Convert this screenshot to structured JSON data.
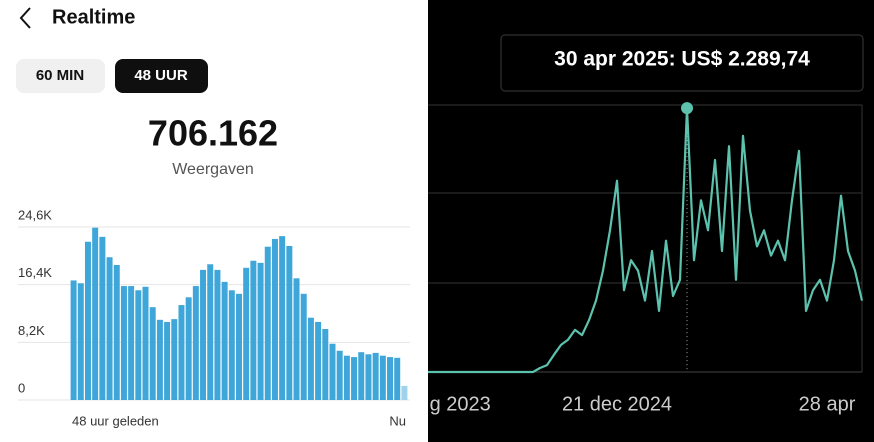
{
  "header": {
    "title": "Realtime"
  },
  "tabs": [
    "60 MIN",
    "48 UUR"
  ],
  "total": {
    "value": "706.162",
    "label": "Weergaven"
  },
  "chart_data": [
    {
      "type": "bar",
      "categories": [
        "48 uur geleden",
        null,
        null,
        null,
        null,
        null,
        null,
        null,
        null,
        null,
        null,
        null,
        null,
        null,
        null,
        null,
        null,
        null,
        null,
        null,
        null,
        null,
        null,
        null,
        null,
        null,
        null,
        null,
        null,
        null,
        null,
        null,
        null,
        null,
        null,
        null,
        null,
        null,
        null,
        null,
        null,
        null,
        null,
        null,
        null,
        null,
        "Nu"
      ],
      "values": [
        17000,
        16600,
        22500,
        24500,
        23200,
        20300,
        19200,
        16200,
        16200,
        15600,
        16100,
        13200,
        11400,
        11100,
        11500,
        13500,
        14600,
        16200,
        18500,
        19300,
        18500,
        16800,
        15600,
        15100,
        18800,
        19800,
        19500,
        21800,
        22900,
        23300,
        21900,
        17300,
        15100,
        11700,
        11100,
        10100,
        8000,
        7000,
        6300,
        6100,
        6800,
        6500,
        6700,
        6300,
        6100,
        6000,
        2000
      ],
      "color": "#3ea6d8",
      "last_color": "#9fd3ec",
      "ylim": [
        0,
        24600
      ],
      "yticks": [
        0,
        {
          "value": 8200,
          "label": "8,2K"
        },
        {
          "value": 16400,
          "label": "16,4K"
        },
        {
          "value": 24600,
          "label": "24,6K"
        }
      ],
      "grid": true
    },
    {
      "type": "line",
      "values": [
        0,
        0,
        0,
        0,
        0,
        0,
        0,
        0,
        0,
        0,
        0,
        0,
        0,
        0,
        0,
        0,
        35,
        60,
        150,
        235,
        280,
        365,
        320,
        450,
        620,
        880,
        1230,
        1660,
        710,
        970,
        880,
        620,
        1050,
        530,
        1140,
        660,
        800,
        2289.74,
        970,
        1490,
        1230,
        1840,
        1050,
        1960,
        800,
        2050,
        1400,
        1090,
        1230,
        1010,
        1140,
        970,
        1490,
        1920,
        530,
        710,
        800,
        620,
        970,
        1530,
        1050,
        880,
        620
      ],
      "color": "#5cc2ae",
      "ylim": [
        0,
        2300
      ],
      "xlim": [
        0,
        62
      ],
      "xticks": [
        {
          "value": 4.6,
          "label": "g 2023"
        },
        {
          "value": 27,
          "label": "21 dec 2024"
        },
        {
          "value": 57,
          "label": "28 apr"
        }
      ],
      "annotation": "30 apr 2025: US$ 2.289,74"
    }
  ]
}
